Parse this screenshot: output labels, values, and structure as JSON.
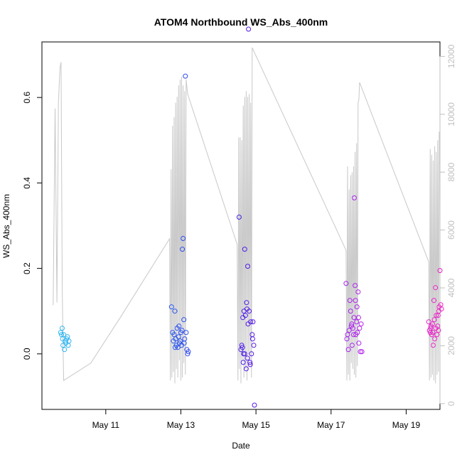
{
  "chart_data": {
    "type": "scatter",
    "title": "ATOM4 Northbound WS_Abs_400nm",
    "xlabel": "Date",
    "ylabel": "WS_Abs_400nm",
    "x_ticks": [
      "May 11",
      "May 13",
      "May 15",
      "May 17",
      "May 19"
    ],
    "xlim": [
      9.3,
      19.9
    ],
    "ylim": [
      -0.13,
      0.73
    ],
    "y_ticks": [
      "0.0",
      "0.2",
      "0.4",
      "0.6"
    ],
    "y2_ticks": [
      "0",
      "2000",
      "4000",
      "6000",
      "8000",
      "10000",
      "12000"
    ],
    "y2lim": [
      -200,
      12500
    ],
    "grid": false,
    "legend": "none",
    "colors": {
      "secondary_line": "#c8c8c8",
      "secondary_axis": "#bfbfbf",
      "point_scale": [
        "#2ab7ef",
        "#1b63f2",
        "#5217e6",
        "#a51ff0",
        "#ee22c4"
      ]
    },
    "series": [
      {
        "type": "scatter",
        "points": [
          [
            9.8,
            0.05
          ],
          [
            9.82,
            0.045
          ],
          [
            9.84,
            0.06
          ],
          [
            9.85,
            0.035
          ],
          [
            9.86,
            0.02
          ],
          [
            9.88,
            0.045
          ],
          [
            9.9,
            0.01
          ],
          [
            9.92,
            0.03
          ],
          [
            9.94,
            0.025
          ],
          [
            9.96,
            0.035
          ],
          [
            9.98,
            0.04
          ],
          [
            10.0,
            0.02
          ],
          [
            10.02,
            0.03
          ],
          [
            12.75,
            0.11
          ],
          [
            12.78,
            0.05
          ],
          [
            12.8,
            0.03
          ],
          [
            12.82,
            0.045
          ],
          [
            12.84,
            0.1
          ],
          [
            12.86,
            0.035
          ],
          [
            12.88,
            0.02
          ],
          [
            12.9,
            0.06
          ],
          [
            12.92,
            0.015
          ],
          [
            12.94,
            0.04
          ],
          [
            12.96,
            0.025
          ],
          [
            12.98,
            0.03
          ],
          [
            13.0,
            0.05
          ],
          [
            13.02,
            0.02
          ],
          [
            13.04,
            0.245
          ],
          [
            13.06,
            0.27
          ],
          [
            13.08,
            0.08
          ],
          [
            13.1,
            0.035
          ],
          [
            13.12,
            0.65
          ],
          [
            13.14,
            0.05
          ],
          [
            13.16,
            0.01
          ],
          [
            13.18,
            0.0
          ],
          [
            13.2,
            0.005
          ],
          [
            12.85,
            0.015
          ],
          [
            12.95,
            0.065
          ],
          [
            13.03,
            0.055
          ],
          [
            13.09,
            0.025
          ],
          [
            14.55,
            0.32
          ],
          [
            14.6,
            0.01
          ],
          [
            14.62,
            0.02
          ],
          [
            14.64,
            0.015
          ],
          [
            14.65,
            0.085
          ],
          [
            14.66,
            -0.02
          ],
          [
            14.67,
            0.0
          ],
          [
            14.68,
            0.1
          ],
          [
            14.7,
            0.245
          ],
          [
            14.72,
            0.09
          ],
          [
            14.74,
            -0.035
          ],
          [
            14.75,
            0.12
          ],
          [
            14.76,
            0.105
          ],
          [
            14.78,
            0.205
          ],
          [
            14.79,
            0.07
          ],
          [
            14.8,
            0.76
          ],
          [
            14.82,
            0.1
          ],
          [
            14.84,
            -0.02
          ],
          [
            14.86,
            0.075
          ],
          [
            14.88,
            0.0
          ],
          [
            14.9,
            0.045
          ],
          [
            14.91,
            0.035
          ],
          [
            14.92,
            0.075
          ],
          [
            14.94,
            0.02
          ],
          [
            14.96,
            -0.12
          ],
          [
            14.7,
            0.0
          ],
          [
            14.77,
            -0.01
          ],
          [
            14.85,
            -0.025
          ],
          [
            17.4,
            0.165
          ],
          [
            17.42,
            0.035
          ],
          [
            17.44,
            0.045
          ],
          [
            17.46,
            0.01
          ],
          [
            17.48,
            0.055
          ],
          [
            17.5,
            0.125
          ],
          [
            17.52,
            0.1
          ],
          [
            17.54,
            0.065
          ],
          [
            17.56,
            0.02
          ],
          [
            17.58,
            0.06
          ],
          [
            17.6,
            0.045
          ],
          [
            17.62,
            0.365
          ],
          [
            17.64,
            0.16
          ],
          [
            17.65,
            0.125
          ],
          [
            17.66,
            0.045
          ],
          [
            17.68,
            0.075
          ],
          [
            17.7,
            0.05
          ],
          [
            17.72,
            0.145
          ],
          [
            17.73,
            0.085
          ],
          [
            17.74,
            0.025
          ],
          [
            17.76,
            0.06
          ],
          [
            17.78,
            0.005
          ],
          [
            17.8,
            0.07
          ],
          [
            17.82,
            0.005
          ],
          [
            17.55,
            0.07
          ],
          [
            17.61,
            0.085
          ],
          [
            17.69,
            0.11
          ],
          [
            19.6,
            0.075
          ],
          [
            19.62,
            0.055
          ],
          [
            19.64,
            0.05
          ],
          [
            19.66,
            0.065
          ],
          [
            19.68,
            0.045
          ],
          [
            19.7,
            0.07
          ],
          [
            19.72,
            0.02
          ],
          [
            19.74,
            0.125
          ],
          [
            19.76,
            0.035
          ],
          [
            19.78,
            0.155
          ],
          [
            19.8,
            0.09
          ],
          [
            19.82,
            0.045
          ],
          [
            19.84,
            0.065
          ],
          [
            19.86,
            0.055
          ],
          [
            19.88,
            0.11
          ],
          [
            19.9,
            0.195
          ],
          [
            19.92,
            0.115
          ],
          [
            19.65,
            0.06
          ],
          [
            19.75,
            0.08
          ],
          [
            19.85,
            0.09
          ],
          [
            19.71,
            0.05
          ],
          [
            19.79,
            0.06
          ],
          [
            19.87,
            0.1
          ],
          [
            19.94,
            0.105
          ]
        ]
      },
      {
        "type": "line",
        "axis": "right",
        "points": [
          [
            9.6,
            3400
          ],
          [
            9.65,
            10200
          ],
          [
            9.7,
            3500
          ],
          [
            9.74,
            10400
          ],
          [
            9.78,
            11600
          ],
          [
            9.81,
            11800
          ],
          [
            9.84,
            4200
          ],
          [
            9.86,
            2100
          ],
          [
            9.88,
            800
          ],
          [
            10.6,
            1400
          ],
          [
            11.4,
            3000
          ],
          [
            12.7,
            5700
          ],
          [
            12.72,
            800
          ],
          [
            12.74,
            8100
          ],
          [
            12.76,
            900
          ],
          [
            12.78,
            9600
          ],
          [
            12.8,
            1100
          ],
          [
            12.82,
            9900
          ],
          [
            12.84,
            700
          ],
          [
            12.86,
            10400
          ],
          [
            12.88,
            1200
          ],
          [
            12.9,
            10600
          ],
          [
            12.92,
            900
          ],
          [
            12.94,
            11000
          ],
          [
            12.96,
            1500
          ],
          [
            12.98,
            11200
          ],
          [
            13.0,
            800
          ],
          [
            13.02,
            11300
          ],
          [
            13.04,
            900
          ],
          [
            13.06,
            11000
          ],
          [
            13.08,
            1400
          ],
          [
            13.1,
            10800
          ],
          [
            13.12,
            1000
          ],
          [
            13.14,
            11200
          ],
          [
            13.18,
            10700
          ],
          [
            14.5,
            5500
          ],
          [
            14.52,
            800
          ],
          [
            14.54,
            9200
          ],
          [
            14.56,
            1200
          ],
          [
            14.58,
            9200
          ],
          [
            14.6,
            700
          ],
          [
            14.62,
            9100
          ],
          [
            14.64,
            1500
          ],
          [
            14.66,
            10300
          ],
          [
            14.68,
            900
          ],
          [
            14.7,
            10600
          ],
          [
            14.72,
            1200
          ],
          [
            14.74,
            10800
          ],
          [
            14.76,
            800
          ],
          [
            14.78,
            10600
          ],
          [
            14.8,
            1700
          ],
          [
            14.82,
            10700
          ],
          [
            14.84,
            1500
          ],
          [
            14.86,
            10400
          ],
          [
            14.88,
            900
          ],
          [
            14.9,
            12300
          ],
          [
            17.4,
            5300
          ],
          [
            17.42,
            800
          ],
          [
            17.44,
            8200
          ],
          [
            17.46,
            1000
          ],
          [
            17.48,
            7400
          ],
          [
            17.5,
            800
          ],
          [
            17.52,
            7900
          ],
          [
            17.54,
            1400
          ],
          [
            17.56,
            8000
          ],
          [
            17.58,
            1200
          ],
          [
            17.6,
            8200
          ],
          [
            17.62,
            1000
          ],
          [
            17.64,
            8700
          ],
          [
            17.66,
            900
          ],
          [
            17.68,
            9000
          ],
          [
            17.7,
            1300
          ],
          [
            17.72,
            10400
          ],
          [
            17.74,
            10500
          ],
          [
            17.76,
            11100
          ],
          [
            19.6,
            4900
          ],
          [
            19.62,
            800
          ],
          [
            19.64,
            8800
          ],
          [
            19.66,
            900
          ],
          [
            19.68,
            8600
          ],
          [
            19.7,
            1000
          ],
          [
            19.72,
            8400
          ],
          [
            19.74,
            800
          ],
          [
            19.76,
            8900
          ],
          [
            19.78,
            700
          ],
          [
            19.8,
            8700
          ],
          [
            19.82,
            1000
          ],
          [
            19.84,
            9100
          ],
          [
            19.86,
            1100
          ],
          [
            19.88,
            9400
          ]
        ]
      }
    ]
  }
}
